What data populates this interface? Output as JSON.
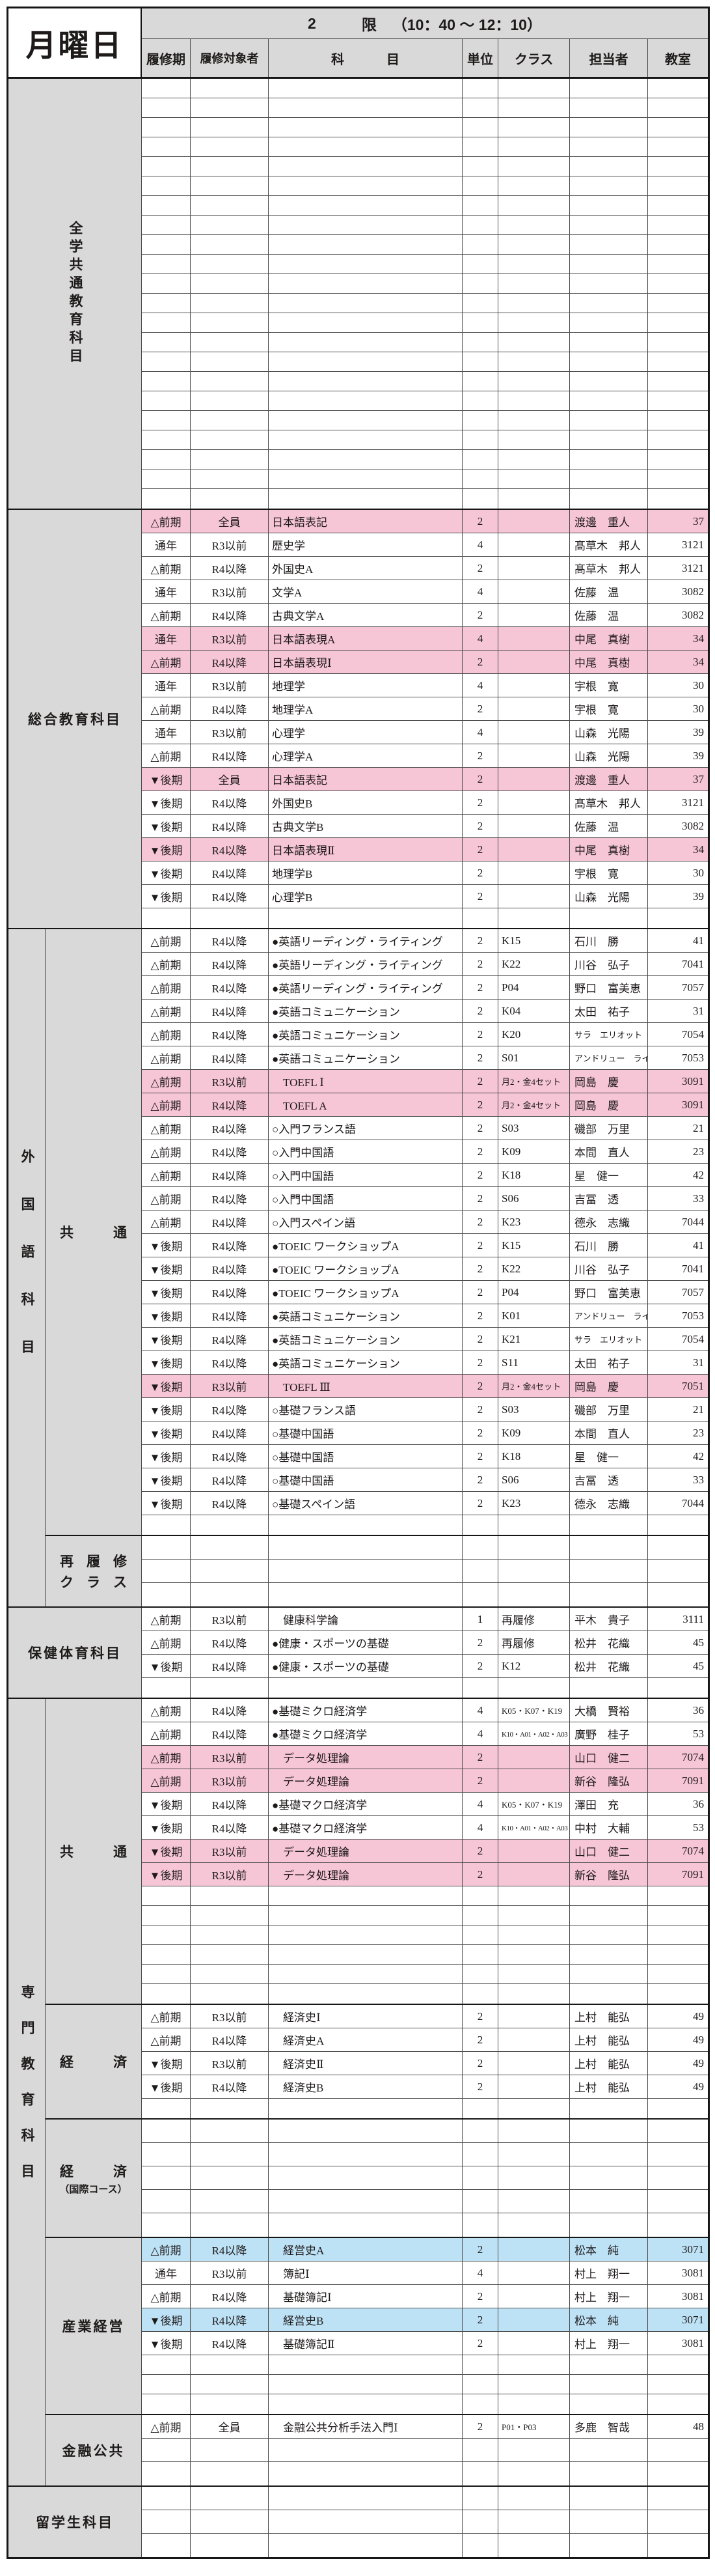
{
  "header": {
    "day": "月曜日",
    "period": {
      "number": "2",
      "unit": "限",
      "time": "（10：40 ～ 12：10）"
    },
    "columns": [
      "履修期",
      "履修対象者",
      "科目",
      "単位",
      "クラス",
      "担当者",
      "教室"
    ]
  },
  "colors": {
    "pink": "#f6c5d6",
    "blue": "#bde1f5",
    "gray": "#d9d9d9",
    "border": "#161616"
  },
  "sections": [
    {
      "id": "zengaku-kyotsu",
      "label": "全学共通教育科目",
      "vertical": true,
      "subsections": [
        {
          "id": "main",
          "rows": [
            {
              "empty": true,
              "count": 22,
              "short": true
            }
          ]
        }
      ]
    },
    {
      "id": "sogo-kyoiku",
      "label": "総合教育科目",
      "subsections": [
        {
          "id": "main",
          "rows": [
            {
              "term": "△前期",
              "target": "全員",
              "subject": "日本語表記",
              "credits": "2",
              "class": "",
              "teacher": "渡邊　重人",
              "room": "37",
              "hl": "p"
            },
            {
              "term": "通年",
              "target": "R3以前",
              "subject": "歴史学",
              "credits": "4",
              "class": "",
              "teacher": "髙草木　邦人",
              "room": "3121"
            },
            {
              "term": "△前期",
              "target": "R4以降",
              "subject": "外国史A",
              "credits": "2",
              "class": "",
              "teacher": "髙草木　邦人",
              "room": "3121"
            },
            {
              "term": "通年",
              "target": "R3以前",
              "subject": "文学A",
              "credits": "4",
              "class": "",
              "teacher": "佐藤　温",
              "room": "3082"
            },
            {
              "term": "△前期",
              "target": "R4以降",
              "subject": "古典文学A",
              "credits": "2",
              "class": "",
              "teacher": "佐藤　温",
              "room": "3082"
            },
            {
              "term": "通年",
              "target": "R3以前",
              "subject": "日本語表現A",
              "credits": "4",
              "class": "",
              "teacher": "中尾　真樹",
              "room": "34",
              "hl": "p"
            },
            {
              "term": "△前期",
              "target": "R4以降",
              "subject": "日本語表現Ⅰ",
              "credits": "2",
              "class": "",
              "teacher": "中尾　真樹",
              "room": "34",
              "hl": "p"
            },
            {
              "term": "通年",
              "target": "R3以前",
              "subject": "地理学",
              "credits": "4",
              "class": "",
              "teacher": "宇根　寛",
              "room": "30"
            },
            {
              "term": "△前期",
              "target": "R4以降",
              "subject": "地理学A",
              "credits": "2",
              "class": "",
              "teacher": "宇根　寛",
              "room": "30"
            },
            {
              "term": "通年",
              "target": "R3以前",
              "subject": "心理学",
              "credits": "4",
              "class": "",
              "teacher": "山森　光陽",
              "room": "39"
            },
            {
              "term": "△前期",
              "target": "R4以降",
              "subject": "心理学A",
              "credits": "2",
              "class": "",
              "teacher": "山森　光陽",
              "room": "39"
            },
            {
              "term": "▼後期",
              "target": "全員",
              "subject": "日本語表記",
              "credits": "2",
              "class": "",
              "teacher": "渡邊　重人",
              "room": "37",
              "hl": "p"
            },
            {
              "term": "▼後期",
              "target": "R4以降",
              "subject": "外国史B",
              "credits": "2",
              "class": "",
              "teacher": "髙草木　邦人",
              "room": "3121"
            },
            {
              "term": "▼後期",
              "target": "R4以降",
              "subject": "古典文学B",
              "credits": "2",
              "class": "",
              "teacher": "佐藤　温",
              "room": "3082"
            },
            {
              "term": "▼後期",
              "target": "R4以降",
              "subject": "日本語表現Ⅱ",
              "credits": "2",
              "class": "",
              "teacher": "中尾　真樹",
              "room": "34",
              "hl": "p"
            },
            {
              "term": "▼後期",
              "target": "R4以降",
              "subject": "地理学B",
              "credits": "2",
              "class": "",
              "teacher": "宇根　寛",
              "room": "30"
            },
            {
              "term": "▼後期",
              "target": "R4以降",
              "subject": "心理学B",
              "credits": "2",
              "class": "",
              "teacher": "山森　光陽",
              "room": "39"
            },
            {
              "empty": true,
              "short": true
            }
          ]
        }
      ]
    },
    {
      "id": "gaikokugo",
      "label": "外国語科目",
      "vertical": true,
      "subsections": [
        {
          "id": "kyotsu",
          "label": "共通",
          "spread": true,
          "rows": [
            {
              "term": "△前期",
              "target": "R4以降",
              "subject": "●英語リーディング・ライティング",
              "credits": "2",
              "class": "K15",
              "teacher": "石川　勝",
              "room": "41"
            },
            {
              "term": "△前期",
              "target": "R4以降",
              "subject": "●英語リーディング・ライティング",
              "credits": "2",
              "class": "K22",
              "teacher": "川谷　弘子",
              "room": "7041"
            },
            {
              "term": "△前期",
              "target": "R4以降",
              "subject": "●英語リーディング・ライティング",
              "credits": "2",
              "class": "P04",
              "teacher": "野口　富美恵",
              "room": "7057"
            },
            {
              "term": "△前期",
              "target": "R4以降",
              "subject": "●英語コミュニケーション",
              "credits": "2",
              "class": "K04",
              "teacher": "太田　祐子",
              "room": "31"
            },
            {
              "term": "△前期",
              "target": "R4以降",
              "subject": "●英語コミュニケーション",
              "credits": "2",
              "class": "K20",
              "teacher": "サラ　エリオット",
              "room": "7054"
            },
            {
              "term": "△前期",
              "target": "R4以降",
              "subject": "●英語コミュニケーション",
              "credits": "2",
              "class": "S01",
              "teacher": "アンドリュー　ライマン",
              "room": "7053"
            },
            {
              "term": "△前期",
              "target": "R3以前",
              "subject": "　TOEFL Ⅰ",
              "credits": "2",
              "class": "月2・金4セット",
              "teacher": "岡島　慶",
              "room": "3091",
              "hl": "p"
            },
            {
              "term": "△前期",
              "target": "R4以降",
              "subject": "　TOEFL A",
              "credits": "2",
              "class": "月2・金4セット",
              "teacher": "岡島　慶",
              "room": "3091",
              "hl": "p"
            },
            {
              "term": "△前期",
              "target": "R4以降",
              "subject": "○入門フランス語",
              "credits": "2",
              "class": "S03",
              "teacher": "磯部　万里",
              "room": "21"
            },
            {
              "term": "△前期",
              "target": "R4以降",
              "subject": "○入門中国語",
              "credits": "2",
              "class": "K09",
              "teacher": "本間　直人",
              "room": "23"
            },
            {
              "term": "△前期",
              "target": "R4以降",
              "subject": "○入門中国語",
              "credits": "2",
              "class": "K18",
              "teacher": "星　健一",
              "room": "42"
            },
            {
              "term": "△前期",
              "target": "R4以降",
              "subject": "○入門中国語",
              "credits": "2",
              "class": "S06",
              "teacher": "吉冨　透",
              "room": "33"
            },
            {
              "term": "△前期",
              "target": "R4以降",
              "subject": "○入門スペイン語",
              "credits": "2",
              "class": "K23",
              "teacher": "德永　志織",
              "room": "7044"
            },
            {
              "term": "▼後期",
              "target": "R4以降",
              "subject": "●TOEIC ワークショップA",
              "credits": "2",
              "class": "K15",
              "teacher": "石川　勝",
              "room": "41"
            },
            {
              "term": "▼後期",
              "target": "R4以降",
              "subject": "●TOEIC ワークショップA",
              "credits": "2",
              "class": "K22",
              "teacher": "川谷　弘子",
              "room": "7041"
            },
            {
              "term": "▼後期",
              "target": "R4以降",
              "subject": "●TOEIC ワークショップA",
              "credits": "2",
              "class": "P04",
              "teacher": "野口　富美恵",
              "room": "7057"
            },
            {
              "term": "▼後期",
              "target": "R4以降",
              "subject": "●英語コミュニケーション",
              "credits": "2",
              "class": "K01",
              "teacher": "アンドリュー　ライマン",
              "room": "7053"
            },
            {
              "term": "▼後期",
              "target": "R4以降",
              "subject": "●英語コミュニケーション",
              "credits": "2",
              "class": "K21",
              "teacher": "サラ　エリオット",
              "room": "7054"
            },
            {
              "term": "▼後期",
              "target": "R4以降",
              "subject": "●英語コミュニケーション",
              "credits": "2",
              "class": "S11",
              "teacher": "太田　祐子",
              "room": "31"
            },
            {
              "term": "▼後期",
              "target": "R3以前",
              "subject": "　TOEFL Ⅲ",
              "credits": "2",
              "class": "月2・金4セット",
              "teacher": "岡島　慶",
              "room": "7051",
              "hl": "p"
            },
            {
              "term": "▼後期",
              "target": "R4以降",
              "subject": "○基礎フランス語",
              "credits": "2",
              "class": "S03",
              "teacher": "磯部　万里",
              "room": "21"
            },
            {
              "term": "▼後期",
              "target": "R4以降",
              "subject": "○基礎中国語",
              "credits": "2",
              "class": "K09",
              "teacher": "本間　直人",
              "room": "23"
            },
            {
              "term": "▼後期",
              "target": "R4以降",
              "subject": "○基礎中国語",
              "credits": "2",
              "class": "K18",
              "teacher": "星　健一",
              "room": "42"
            },
            {
              "term": "▼後期",
              "target": "R4以降",
              "subject": "○基礎中国語",
              "credits": "2",
              "class": "S06",
              "teacher": "吉冨　透",
              "room": "33"
            },
            {
              "term": "▼後期",
              "target": "R4以降",
              "subject": "○基礎スペイン語",
              "credits": "2",
              "class": "K23",
              "teacher": "德永　志織",
              "room": "7044"
            },
            {
              "empty": true,
              "short": true
            }
          ]
        },
        {
          "id": "sairishu-class",
          "label": "再履修",
          "label2": "クラス",
          "spread": true,
          "spread2": true,
          "rows": [
            {
              "empty": true,
              "count": 3
            }
          ]
        }
      ]
    },
    {
      "id": "hoken-taiiku",
      "label": "保健体育科目",
      "subsections": [
        {
          "id": "main",
          "rows": [
            {
              "term": "△前期",
              "target": "R3以前",
              "subject": "　健康科学論",
              "credits": "1",
              "class": "再履修",
              "teacher": "平木　貴子",
              "room": "3111"
            },
            {
              "term": "△前期",
              "target": "R4以降",
              "subject": "●健康・スポーツの基礎",
              "credits": "2",
              "class": "再履修",
              "teacher": "松井　花織",
              "room": "45"
            },
            {
              "term": "▼後期",
              "target": "R4以降",
              "subject": "●健康・スポーツの基礎",
              "credits": "2",
              "class": "K12",
              "teacher": "松井　花織",
              "room": "45"
            },
            {
              "empty": true,
              "short": true
            }
          ]
        }
      ]
    },
    {
      "id": "senmon-kyoiku",
      "label": "専門教育科目",
      "vertical": true,
      "subsections": [
        {
          "id": "kyotsu",
          "label": "共通",
          "spread": true,
          "rows": [
            {
              "term": "△前期",
              "target": "R4以降",
              "subject": "●基礎ミクロ経済学",
              "credits": "4",
              "class": "K05・K07・K19",
              "teacher": "大橋　賢裕",
              "room": "36"
            },
            {
              "term": "△前期",
              "target": "R4以降",
              "subject": "●基礎ミクロ経済学",
              "credits": "4",
              "class": "K10・A01・A02・A03",
              "teacher": "廣野　桂子",
              "room": "53"
            },
            {
              "term": "△前期",
              "target": "R3以前",
              "subject": "　データ処理論",
              "credits": "2",
              "class": "",
              "teacher": "山口　健二",
              "room": "7074",
              "hl": "p"
            },
            {
              "term": "△前期",
              "target": "R3以前",
              "subject": "　データ処理論",
              "credits": "2",
              "class": "",
              "teacher": "新谷　隆弘",
              "room": "7091",
              "hl": "p"
            },
            {
              "term": "▼後期",
              "target": "R4以降",
              "subject": "●基礎マクロ経済学",
              "credits": "4",
              "class": "K05・K07・K19",
              "teacher": "澤田　充",
              "room": "36"
            },
            {
              "term": "▼後期",
              "target": "R4以降",
              "subject": "●基礎マクロ経済学",
              "credits": "4",
              "class": "K10・A01・A02・A03",
              "teacher": "中村　大輔",
              "room": "53"
            },
            {
              "term": "▼後期",
              "target": "R3以前",
              "subject": "　データ処理論",
              "credits": "2",
              "class": "",
              "teacher": "山口　健二",
              "room": "7074",
              "hl": "p"
            },
            {
              "term": "▼後期",
              "target": "R3以前",
              "subject": "　データ処理論",
              "credits": "2",
              "class": "",
              "teacher": "新谷　隆弘",
              "room": "7091",
              "hl": "p"
            },
            {
              "empty": true,
              "count": 6,
              "short": true
            }
          ]
        },
        {
          "id": "keizai",
          "label": "経済",
          "spread": true,
          "rows": [
            {
              "term": "△前期",
              "target": "R3以前",
              "subject": "　経済史Ⅰ",
              "credits": "2",
              "class": "",
              "teacher": "上村　能弘",
              "room": "49"
            },
            {
              "term": "△前期",
              "target": "R4以降",
              "subject": "　経済史A",
              "credits": "2",
              "class": "",
              "teacher": "上村　能弘",
              "room": "49"
            },
            {
              "term": "▼後期",
              "target": "R3以前",
              "subject": "　経済史Ⅱ",
              "credits": "2",
              "class": "",
              "teacher": "上村　能弘",
              "room": "49"
            },
            {
              "term": "▼後期",
              "target": "R4以降",
              "subject": "　経済史B",
              "credits": "2",
              "class": "",
              "teacher": "上村　能弘",
              "room": "49"
            },
            {
              "empty": true,
              "short": true
            }
          ]
        },
        {
          "id": "keizai-kokusai",
          "label": "経済",
          "label2": "（国際コース）",
          "spread": true,
          "rows": [
            {
              "empty": true,
              "count": 5
            }
          ]
        },
        {
          "id": "sangyo-keiei",
          "label": "産業経営",
          "rows": [
            {
              "term": "△前期",
              "target": "R4以降",
              "subject": "　経営史A",
              "credits": "2",
              "class": "",
              "teacher": "松本　純",
              "room": "3071",
              "hl": "b"
            },
            {
              "term": "通年",
              "target": "R3以前",
              "subject": "　簿記Ⅰ",
              "credits": "4",
              "class": "",
              "teacher": "村上　翔一",
              "room": "3081"
            },
            {
              "term": "△前期",
              "target": "R4以降",
              "subject": "　基礎簿記Ⅰ",
              "credits": "2",
              "class": "",
              "teacher": "村上　翔一",
              "room": "3081"
            },
            {
              "term": "▼後期",
              "target": "R4以降",
              "subject": "　経営史B",
              "credits": "2",
              "class": "",
              "teacher": "松本　純",
              "room": "3071",
              "hl": "b"
            },
            {
              "term": "▼後期",
              "target": "R4以降",
              "subject": "　基礎簿記Ⅱ",
              "credits": "2",
              "class": "",
              "teacher": "村上　翔一",
              "room": "3081"
            },
            {
              "empty": true,
              "count": 3,
              "short": true
            }
          ]
        },
        {
          "id": "kinyu-kokyo",
          "label": "金融公共",
          "rows": [
            {
              "term": "△前期",
              "target": "全員",
              "subject": "　金融公共分析手法入門Ⅰ",
              "credits": "2",
              "class": "P01・P03",
              "teacher": "多鹿　智哉",
              "room": "48"
            },
            {
              "empty": true,
              "count": 2
            }
          ]
        }
      ]
    },
    {
      "id": "ryugakusei",
      "label": "留学生科目",
      "subsections": [
        {
          "id": "main",
          "rows": [
            {
              "empty": true,
              "count": 3
            }
          ]
        }
      ]
    }
  ]
}
